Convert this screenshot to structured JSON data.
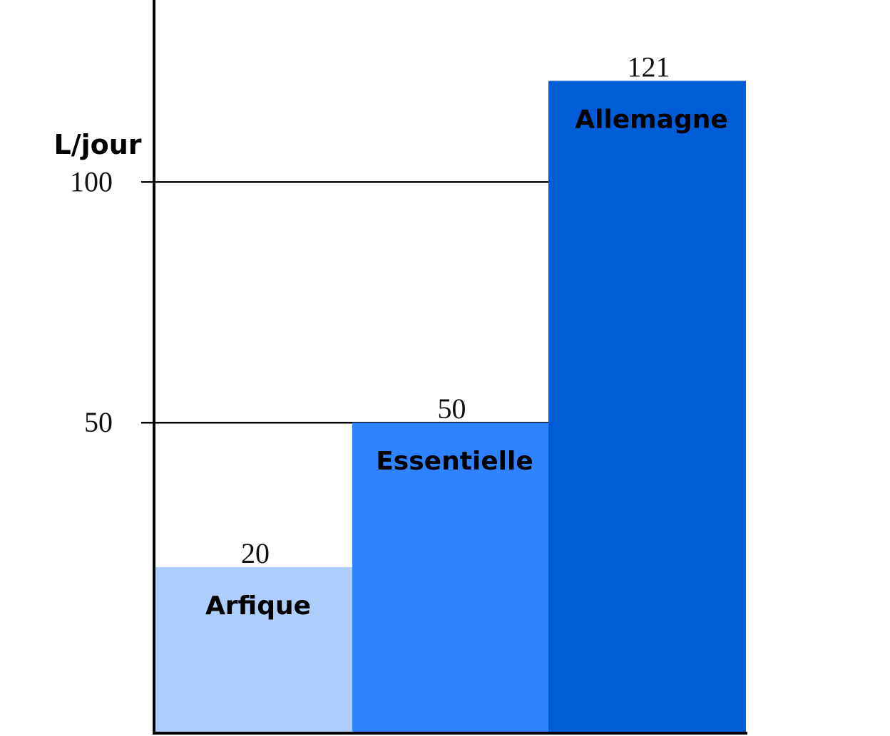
{
  "chart_data": {
    "type": "bar",
    "title": "",
    "xlabel": "",
    "ylabel": "L/jour",
    "categories": [
      "Arfique",
      "Essentielle",
      "Allemagne"
    ],
    "values": [
      20,
      50,
      121
    ],
    "data_labels": [
      "20",
      "50",
      "121"
    ],
    "yticks": [
      50,
      100
    ],
    "ytick_labels": [
      "50",
      "100"
    ],
    "ylim": [
      -14.5,
      137.8
    ],
    "grid": "horizontal lines at 50 and 100",
    "legend": "none",
    "colors": [
      "#adcdfb",
      "#2f83fe",
      "#005dd8"
    ]
  }
}
